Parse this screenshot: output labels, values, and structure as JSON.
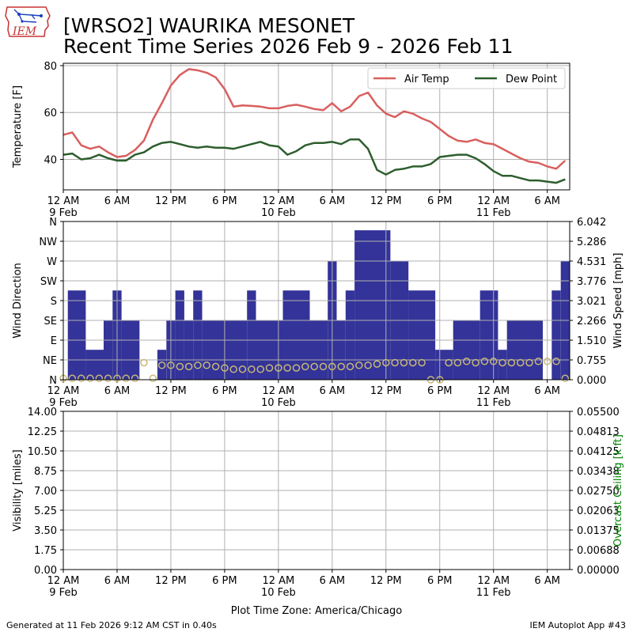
{
  "header": {
    "logo_text": "IEM",
    "title_line1": "[WRSO2] WAURIKA MESONET",
    "title_line2": "Recent Time Series 2026 Feb 9 - 2026 Feb 11"
  },
  "footer": {
    "generated": "Generated at 11 Feb 2026 9:12 AM CST in 0.40s",
    "app": "IEM Autoplot App #43"
  },
  "colors": {
    "air_temp": "#d95f5f",
    "dew_point": "#2e5e2e",
    "wind_dir_bar": "#333399",
    "wind_speed_marker": "#c8b878",
    "ceiling_label": "#008000",
    "grid": "#b0b0b0"
  },
  "chart_data": [
    {
      "type": "line",
      "ylabel": "Temperature [F]",
      "ylim": [
        27,
        81
      ],
      "yticks": [
        40,
        60,
        80
      ],
      "ytick_labels": [
        "40",
        "60",
        "80"
      ],
      "grid": true,
      "legend_position": "top-right",
      "xaxis": {
        "unit": "hours since 12 AM 9 Feb",
        "range": [
          0,
          56.5
        ],
        "ticks": [
          0,
          6,
          12,
          18,
          24,
          30,
          36,
          42,
          48,
          54
        ],
        "tick_labels": [
          "12 AM",
          "6 AM",
          "12 PM",
          "6 PM",
          "12 AM",
          "6 AM",
          "12 PM",
          "6 PM",
          "12 AM",
          "6 AM"
        ],
        "date_labels": [
          {
            "at": 0,
            "text": "9 Feb"
          },
          {
            "at": 24,
            "text": "10 Feb"
          },
          {
            "at": 48,
            "text": "11 Feb"
          }
        ]
      },
      "x": [
        0,
        1,
        2,
        3,
        4,
        5,
        6,
        7,
        8,
        9,
        10,
        11,
        12,
        13,
        14,
        15,
        16,
        17,
        18,
        19,
        20,
        21,
        22,
        23,
        24,
        25,
        26,
        27,
        28,
        29,
        30,
        31,
        32,
        33,
        34,
        35,
        36,
        37,
        38,
        39,
        40,
        41,
        42,
        43,
        44,
        45,
        46,
        47,
        48,
        49,
        50,
        51,
        52,
        53,
        54,
        55,
        56
      ],
      "series": [
        {
          "name": "Air Temp",
          "values": [
            50.5,
            51.5,
            46,
            44.5,
            45.5,
            43,
            41,
            41.5,
            44,
            48,
            57,
            64,
            71.5,
            76,
            78.5,
            78,
            77,
            75,
            70,
            62.5,
            63,
            62.8,
            62.5,
            61.8,
            61.8,
            62.8,
            63.3,
            62.5,
            61.5,
            61,
            64,
            60.5,
            62.5,
            67,
            68.5,
            63,
            59.5,
            58,
            60.5,
            59.5,
            57.5,
            56,
            53,
            50,
            48,
            47.5,
            48.5,
            47,
            46.5,
            44.5,
            42.5,
            40.5,
            39,
            38.5,
            37,
            36,
            39.5
          ]
        },
        {
          "name": "Dew Point",
          "values": [
            42,
            42.5,
            40,
            40.5,
            42,
            40.5,
            39.5,
            39.5,
            42,
            43,
            45.5,
            47,
            47.5,
            46.5,
            45.5,
            45,
            45.5,
            45,
            45,
            44.5,
            45.5,
            46.5,
            47.5,
            46,
            45.5,
            42,
            43.5,
            46,
            47,
            47,
            47.5,
            46.5,
            48.5,
            48.5,
            44.5,
            35.5,
            33.5,
            35.5,
            36,
            37,
            37,
            38,
            41,
            41.5,
            42,
            42,
            40.5,
            38,
            35,
            33,
            33,
            32,
            31,
            31,
            30.5,
            30,
            31.5
          ]
        }
      ]
    },
    {
      "type": "bar",
      "ylabel": "Wind Direction",
      "y2label": "Wind Speed [mph]",
      "ylim": [
        0,
        360
      ],
      "yticks": [
        0,
        45,
        90,
        135,
        180,
        225,
        270,
        315,
        360
      ],
      "ytick_labels": [
        "N",
        "NE",
        "E",
        "SE",
        "S",
        "SW",
        "W",
        "NW",
        "N"
      ],
      "y2lim": [
        0,
        6.042
      ],
      "y2ticks": [
        0,
        0.755,
        1.51,
        2.266,
        3.021,
        3.776,
        4.531,
        5.286,
        6.042
      ],
      "y2tick_labels": [
        "0.000",
        "0.755",
        "1.510",
        "2.266",
        "3.021",
        "3.776",
        "4.531",
        "5.286",
        "6.042"
      ],
      "grid": true,
      "xaxis": {
        "unit": "hours since 12 AM 9 Feb",
        "range": [
          0,
          56.5
        ],
        "ticks": [
          0,
          6,
          12,
          18,
          24,
          30,
          36,
          42,
          48,
          54
        ],
        "tick_labels": [
          "12 AM",
          "6 AM",
          "12 PM",
          "6 PM",
          "12 AM",
          "6 AM",
          "12 PM",
          "6 PM",
          "12 AM",
          "6 AM"
        ],
        "date_labels": [
          {
            "at": 0,
            "text": "9 Feb"
          },
          {
            "at": 24,
            "text": "10 Feb"
          },
          {
            "at": 48,
            "text": "11 Feb"
          }
        ]
      },
      "wind_direction": [
        {
          "start": 0.5,
          "end": 2.5,
          "value": 203
        },
        {
          "start": 2.5,
          "end": 4.5,
          "value": 68
        },
        {
          "start": 4.5,
          "end": 5.5,
          "value": 135
        },
        {
          "start": 5.5,
          "end": 6.5,
          "value": 203
        },
        {
          "start": 6.5,
          "end": 8.5,
          "value": 135
        },
        {
          "start": 10.5,
          "end": 11.5,
          "value": 68
        },
        {
          "start": 11.5,
          "end": 12.5,
          "value": 135
        },
        {
          "start": 12.5,
          "end": 13.5,
          "value": 203
        },
        {
          "start": 13.5,
          "end": 14.5,
          "value": 135
        },
        {
          "start": 14.5,
          "end": 15.5,
          "value": 203
        },
        {
          "start": 15.5,
          "end": 20.5,
          "value": 135
        },
        {
          "start": 20.5,
          "end": 21.5,
          "value": 203
        },
        {
          "start": 21.5,
          "end": 24.5,
          "value": 135
        },
        {
          "start": 24.5,
          "end": 27.5,
          "value": 203
        },
        {
          "start": 27.5,
          "end": 29.5,
          "value": 135
        },
        {
          "start": 29.5,
          "end": 30.5,
          "value": 270
        },
        {
          "start": 30.5,
          "end": 31.5,
          "value": 135
        },
        {
          "start": 31.5,
          "end": 32.5,
          "value": 203
        },
        {
          "start": 32.5,
          "end": 36.5,
          "value": 340
        },
        {
          "start": 36.5,
          "end": 38.5,
          "value": 270
        },
        {
          "start": 38.5,
          "end": 41.5,
          "value": 203
        },
        {
          "start": 41.5,
          "end": 43.5,
          "value": 68
        },
        {
          "start": 43.5,
          "end": 46.5,
          "value": 135
        },
        {
          "start": 46.5,
          "end": 48.5,
          "value": 203
        },
        {
          "start": 48.5,
          "end": 49.5,
          "value": 68
        },
        {
          "start": 49.5,
          "end": 53.5,
          "value": 135
        },
        {
          "start": 54.5,
          "end": 55.5,
          "value": 203
        },
        {
          "start": 55.5,
          "end": 56.5,
          "value": 270
        }
      ],
      "wind_speed": {
        "x": [
          0,
          1,
          2,
          3,
          4,
          5,
          6,
          7,
          8,
          9,
          10,
          11,
          12,
          13,
          14,
          15,
          16,
          17,
          18,
          19,
          20,
          21,
          22,
          23,
          24,
          25,
          26,
          27,
          28,
          29,
          30,
          31,
          32,
          33,
          34,
          35,
          36,
          37,
          38,
          39,
          40,
          41,
          42,
          43,
          44,
          45,
          46,
          47,
          48,
          49,
          50,
          51,
          52,
          53,
          54,
          55,
          56
        ],
        "values": [
          0.05,
          0.05,
          0.05,
          0.05,
          0.05,
          0.05,
          0.05,
          0.05,
          0.05,
          0.65,
          0.05,
          0.55,
          0.55,
          0.5,
          0.5,
          0.55,
          0.55,
          0.5,
          0.45,
          0.4,
          0.4,
          0.4,
          0.4,
          0.45,
          0.45,
          0.45,
          0.45,
          0.5,
          0.5,
          0.5,
          0.5,
          0.5,
          0.5,
          0.55,
          0.55,
          0.6,
          0.65,
          0.65,
          0.65,
          0.65,
          0.65,
          0.0,
          0.0,
          0.65,
          0.65,
          0.7,
          0.65,
          0.7,
          0.7,
          0.65,
          0.65,
          0.65,
          0.65,
          0.7,
          0.7,
          0.7,
          0.05
        ]
      }
    },
    {
      "type": "line",
      "ylabel": "Visibility [miles]",
      "y2label": "Overcast Ceiling [k ft]",
      "ylim": [
        0,
        14
      ],
      "yticks": [
        0,
        1.75,
        3.5,
        5.25,
        7,
        8.75,
        10.5,
        12.25,
        14
      ],
      "ytick_labels": [
        "0.00",
        "1.75",
        "3.50",
        "5.25",
        "7.00",
        "8.75",
        "10.50",
        "12.25",
        "14.00"
      ],
      "y2lim": [
        0,
        0.055
      ],
      "y2ticks": [
        0,
        0.006875,
        0.01375,
        0.020625,
        0.0275,
        0.034375,
        0.04125,
        0.048125,
        0.055
      ],
      "y2tick_labels": [
        "0.00000",
        "0.00688",
        "0.01375",
        "0.02063",
        "0.02750",
        "0.03438",
        "0.04125",
        "0.04813",
        "0.05500"
      ],
      "grid": true,
      "xaxis": {
        "unit": "hours since 12 AM 9 Feb",
        "range": [
          0,
          56.5
        ],
        "ticks": [
          0,
          6,
          12,
          18,
          24,
          30,
          36,
          42,
          48,
          54
        ],
        "tick_labels": [
          "12 AM",
          "6 AM",
          "12 PM",
          "6 PM",
          "12 AM",
          "6 AM",
          "12 PM",
          "6 PM",
          "12 AM",
          "6 AM"
        ],
        "date_labels": [
          {
            "at": 0,
            "text": "9 Feb"
          },
          {
            "at": 24,
            "text": "10 Feb"
          },
          {
            "at": 48,
            "text": "11 Feb"
          }
        ]
      },
      "xlabel": "Plot Time Zone: America/Chicago",
      "series": []
    }
  ]
}
